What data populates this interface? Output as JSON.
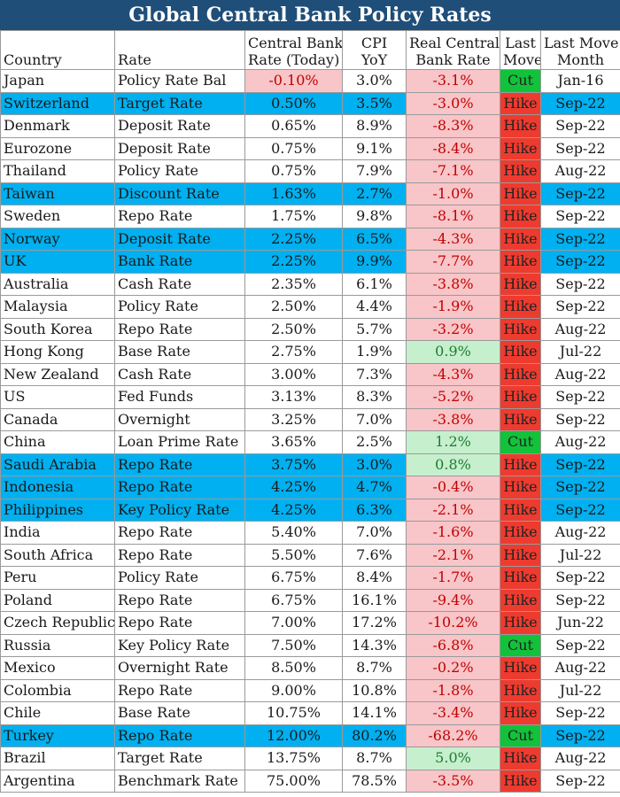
{
  "title": "Global Central Bank Policy Rates",
  "headers": {
    "country": "Country",
    "rate": "Rate",
    "cb_rate_line1": "Central Bank",
    "cb_rate_line2": "Rate (Today)",
    "cpi_line1": "CPI",
    "cpi_line2": "YoY",
    "real_line1": "Real Central",
    "real_line2": "Bank Rate",
    "move_line1": "Last",
    "move_line2": "Move",
    "month_line1": "Last Move",
    "month_line2": "Month"
  },
  "colors": {
    "title_bg": "#1f4e79",
    "highlight": "#00b0f0",
    "negative_bg": "#f8c5c8",
    "negative_text": "#c00000",
    "positive_bg": "#c6efce",
    "positive_text": "#1e7b2f",
    "hike": "#ee3b2f",
    "cut": "#11c23a"
  },
  "rows": [
    {
      "country": "Japan",
      "rate": "Policy Rate Bal",
      "cb_rate": "-0.10%",
      "cpi": "3.0%",
      "real": "-3.1%",
      "move": "Cut",
      "month": "Jan-16",
      "highlight": false
    },
    {
      "country": "Switzerland",
      "rate": "Target Rate",
      "cb_rate": "0.50%",
      "cpi": "3.5%",
      "real": "-3.0%",
      "move": "Hike",
      "month": "Sep-22",
      "highlight": true
    },
    {
      "country": "Denmark",
      "rate": "Deposit Rate",
      "cb_rate": "0.65%",
      "cpi": "8.9%",
      "real": "-8.3%",
      "move": "Hike",
      "month": "Sep-22",
      "highlight": false
    },
    {
      "country": "Eurozone",
      "rate": "Deposit Rate",
      "cb_rate": "0.75%",
      "cpi": "9.1%",
      "real": "-8.4%",
      "move": "Hike",
      "month": "Sep-22",
      "highlight": false
    },
    {
      "country": "Thailand",
      "rate": "Policy Rate",
      "cb_rate": "0.75%",
      "cpi": "7.9%",
      "real": "-7.1%",
      "move": "Hike",
      "month": "Aug-22",
      "highlight": false
    },
    {
      "country": "Taiwan",
      "rate": "Discount Rate",
      "cb_rate": "1.63%",
      "cpi": "2.7%",
      "real": "-1.0%",
      "move": "Hike",
      "month": "Sep-22",
      "highlight": true
    },
    {
      "country": "Sweden",
      "rate": "Repo Rate",
      "cb_rate": "1.75%",
      "cpi": "9.8%",
      "real": "-8.1%",
      "move": "Hike",
      "month": "Sep-22",
      "highlight": false
    },
    {
      "country": "Norway",
      "rate": "Deposit Rate",
      "cb_rate": "2.25%",
      "cpi": "6.5%",
      "real": "-4.3%",
      "move": "Hike",
      "month": "Sep-22",
      "highlight": true
    },
    {
      "country": "UK",
      "rate": "Bank Rate",
      "cb_rate": "2.25%",
      "cpi": "9.9%",
      "real": "-7.7%",
      "move": "Hike",
      "month": "Sep-22",
      "highlight": true
    },
    {
      "country": "Australia",
      "rate": "Cash Rate",
      "cb_rate": "2.35%",
      "cpi": "6.1%",
      "real": "-3.8%",
      "move": "Hike",
      "month": "Sep-22",
      "highlight": false
    },
    {
      "country": "Malaysia",
      "rate": "Policy Rate",
      "cb_rate": "2.50%",
      "cpi": "4.4%",
      "real": "-1.9%",
      "move": "Hike",
      "month": "Sep-22",
      "highlight": false
    },
    {
      "country": "South Korea",
      "rate": "Repo Rate",
      "cb_rate": "2.50%",
      "cpi": "5.7%",
      "real": "-3.2%",
      "move": "Hike",
      "month": "Aug-22",
      "highlight": false
    },
    {
      "country": "Hong Kong",
      "rate": "Base Rate",
      "cb_rate": "2.75%",
      "cpi": "1.9%",
      "real": "0.9%",
      "move": "Hike",
      "month": "Jul-22",
      "highlight": false
    },
    {
      "country": "New Zealand",
      "rate": "Cash Rate",
      "cb_rate": "3.00%",
      "cpi": "7.3%",
      "real": "-4.3%",
      "move": "Hike",
      "month": "Aug-22",
      "highlight": false
    },
    {
      "country": "US",
      "rate": "Fed Funds",
      "cb_rate": "3.13%",
      "cpi": "8.3%",
      "real": "-5.2%",
      "move": "Hike",
      "month": "Sep-22",
      "highlight": false
    },
    {
      "country": "Canada",
      "rate": "Overnight",
      "cb_rate": "3.25%",
      "cpi": "7.0%",
      "real": "-3.8%",
      "move": "Hike",
      "month": "Sep-22",
      "highlight": false
    },
    {
      "country": "China",
      "rate": "Loan Prime Rate",
      "cb_rate": "3.65%",
      "cpi": "2.5%",
      "real": "1.2%",
      "move": "Cut",
      "month": "Aug-22",
      "highlight": false
    },
    {
      "country": "Saudi Arabia",
      "rate": "Repo Rate",
      "cb_rate": "3.75%",
      "cpi": "3.0%",
      "real": "0.8%",
      "move": "Hike",
      "month": "Sep-22",
      "highlight": true
    },
    {
      "country": "Indonesia",
      "rate": "Repo Rate",
      "cb_rate": "4.25%",
      "cpi": "4.7%",
      "real": "-0.4%",
      "move": "Hike",
      "month": "Sep-22",
      "highlight": true
    },
    {
      "country": "Philippines",
      "rate": "Key Policy Rate",
      "cb_rate": "4.25%",
      "cpi": "6.3%",
      "real": "-2.1%",
      "move": "Hike",
      "month": "Sep-22",
      "highlight": true
    },
    {
      "country": "India",
      "rate": "Repo Rate",
      "cb_rate": "5.40%",
      "cpi": "7.0%",
      "real": "-1.6%",
      "move": "Hike",
      "month": "Aug-22",
      "highlight": false
    },
    {
      "country": "South Africa",
      "rate": "Repo Rate",
      "cb_rate": "5.50%",
      "cpi": "7.6%",
      "real": "-2.1%",
      "move": "Hike",
      "month": "Jul-22",
      "highlight": false
    },
    {
      "country": "Peru",
      "rate": "Policy Rate",
      "cb_rate": "6.75%",
      "cpi": "8.4%",
      "real": "-1.7%",
      "move": "Hike",
      "month": "Sep-22",
      "highlight": false
    },
    {
      "country": "Poland",
      "rate": "Repo Rate",
      "cb_rate": "6.75%",
      "cpi": "16.1%",
      "real": "-9.4%",
      "move": "Hike",
      "month": "Sep-22",
      "highlight": false
    },
    {
      "country": "Czech Republic",
      "rate": "Repo Rate",
      "cb_rate": "7.00%",
      "cpi": "17.2%",
      "real": "-10.2%",
      "move": "Hike",
      "month": "Jun-22",
      "highlight": false
    },
    {
      "country": "Russia",
      "rate": "Key Policy Rate",
      "cb_rate": "7.50%",
      "cpi": "14.3%",
      "real": "-6.8%",
      "move": "Cut",
      "month": "Sep-22",
      "highlight": false
    },
    {
      "country": "Mexico",
      "rate": "Overnight Rate",
      "cb_rate": "8.50%",
      "cpi": "8.7%",
      "real": "-0.2%",
      "move": "Hike",
      "month": "Aug-22",
      "highlight": false
    },
    {
      "country": "Colombia",
      "rate": "Repo Rate",
      "cb_rate": "9.00%",
      "cpi": "10.8%",
      "real": "-1.8%",
      "move": "Hike",
      "month": "Jul-22",
      "highlight": false
    },
    {
      "country": "Chile",
      "rate": "Base Rate",
      "cb_rate": "10.75%",
      "cpi": "14.1%",
      "real": "-3.4%",
      "move": "Hike",
      "month": "Sep-22",
      "highlight": false
    },
    {
      "country": "Turkey",
      "rate": "Repo Rate",
      "cb_rate": "12.00%",
      "cpi": "80.2%",
      "real": "-68.2%",
      "move": "Cut",
      "month": "Sep-22",
      "highlight": true
    },
    {
      "country": "Brazil",
      "rate": "Target Rate",
      "cb_rate": "13.75%",
      "cpi": "8.7%",
      "real": "5.0%",
      "move": "Hike",
      "month": "Aug-22",
      "highlight": false
    },
    {
      "country": "Argentina",
      "rate": "Benchmark Rate",
      "cb_rate": "75.00%",
      "cpi": "78.5%",
      "real": "-3.5%",
      "move": "Hike",
      "month": "Sep-22",
      "highlight": false
    }
  ]
}
